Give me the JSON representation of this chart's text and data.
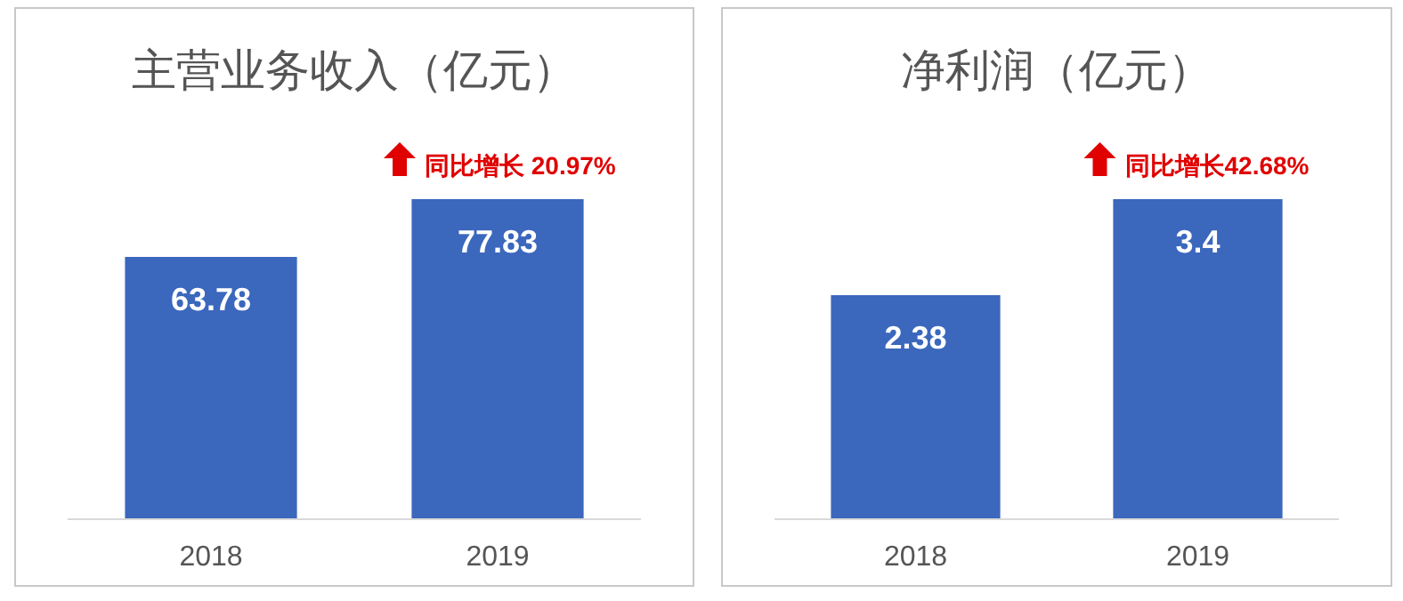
{
  "chart_data": [
    {
      "type": "bar",
      "title": "主营业务收入（亿元）",
      "categories": [
        "2018",
        "2019"
      ],
      "values": [
        63.78,
        77.83
      ],
      "color": "#3b67bd",
      "data_labels": true,
      "annotations": [
        {
          "text": "同比增长 20.97%",
          "x": "2019",
          "y": 77.83
        }
      ]
    },
    {
      "type": "bar",
      "title": "净利润（亿元）",
      "categories": [
        "2018",
        "2019"
      ],
      "values": [
        2.38,
        3.4
      ],
      "color": "#3b67bd",
      "data_labels": true,
      "annotations": [
        {
          "text": "同比增长42.68%",
          "x": "2019",
          "y": 3.4
        }
      ]
    }
  ]
}
